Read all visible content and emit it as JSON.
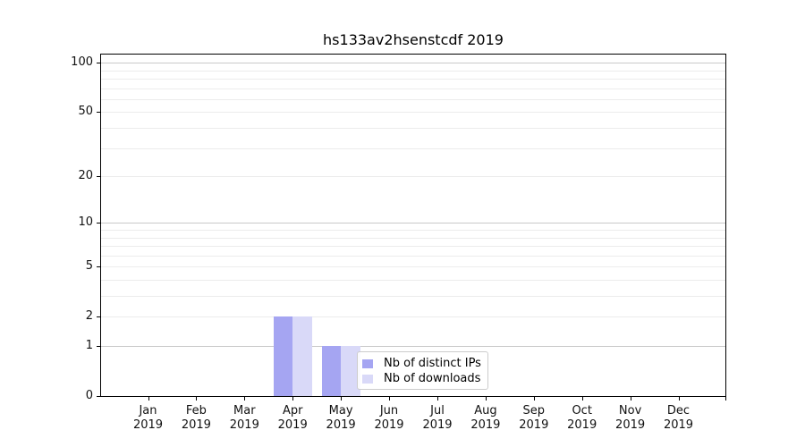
{
  "figure": {
    "background": "#ffffff"
  },
  "chart_data": {
    "type": "bar",
    "title": "hs133av2hsenstcdf 2019",
    "categories": [
      "Jan",
      "Feb",
      "Mar",
      "Apr",
      "May",
      "Jun",
      "Jul",
      "Aug",
      "Sep",
      "Oct",
      "Nov",
      "Dec"
    ],
    "category_year": "2019",
    "series": [
      {
        "name": "Nb of distinct IPs",
        "color": "#a5a5f2",
        "values": [
          0,
          0,
          0,
          2,
          1,
          0,
          0,
          0,
          0,
          0,
          0,
          0
        ]
      },
      {
        "name": "Nb of downloads",
        "color": "#d9d9f8",
        "values": [
          0,
          0,
          0,
          2,
          1,
          0,
          0,
          0,
          0,
          0,
          0,
          0
        ]
      }
    ],
    "y_axis": {
      "scale": "log1p",
      "tick_values": [
        0,
        1,
        2,
        5,
        10,
        20,
        50,
        100
      ],
      "major_gridlines": [
        1,
        10,
        100
      ],
      "minor_gridlines": [
        2,
        3,
        4,
        5,
        6,
        7,
        8,
        9,
        20,
        30,
        40,
        50,
        60,
        70,
        80,
        90
      ],
      "range_top_value": 112
    },
    "x_axis": {
      "extra_unlabeled_tick": true
    },
    "legend": {
      "position": "lower-center-right",
      "entries": [
        "Nb of distinct IPs",
        "Nb of downloads"
      ]
    },
    "colors": {
      "axis": "#000000",
      "major_grid": "#c9c9c9",
      "minor_grid": "#ececec",
      "text": "#111111",
      "legend_border": "#cccccc"
    }
  }
}
